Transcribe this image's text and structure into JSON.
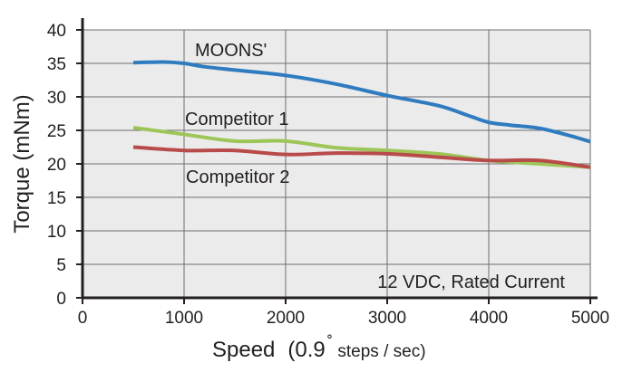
{
  "chart_data": {
    "type": "line",
    "xlabel": "Speed",
    "xlabel_paren_open": "(0.9",
    "xlabel_degree": "˚",
    "xlabel_unit": " steps / sec)",
    "ylabel": "Torque  (mNm)",
    "xlim": [
      0,
      5000
    ],
    "ylim": [
      0,
      40
    ],
    "xticks": [
      0,
      1000,
      2000,
      3000,
      4000,
      5000
    ],
    "yticks": [
      0,
      5,
      10,
      15,
      20,
      25,
      30,
      35,
      40
    ],
    "grid": true,
    "background": "#ebebeb",
    "annotation": "12 VDC, Rated Current",
    "series": [
      {
        "name": "MOONS'",
        "color": "#2f7bbf",
        "x": [
          500,
          800,
          1000,
          1200,
          1500,
          2000,
          2500,
          3000,
          3500,
          3800,
          4000,
          4200,
          4500,
          4800,
          5000
        ],
        "y": [
          35.1,
          35.2,
          35.0,
          34.5,
          34.0,
          33.2,
          31.9,
          30.2,
          28.7,
          27.2,
          26.2,
          25.8,
          25.3,
          24.2,
          23.3
        ]
      },
      {
        "name": "Competitor 1",
        "color": "#9dc557",
        "x": [
          500,
          1000,
          1500,
          2000,
          2500,
          3000,
          3500,
          4000,
          4500,
          5000
        ],
        "y": [
          25.4,
          24.4,
          23.4,
          23.4,
          22.4,
          22.0,
          21.5,
          20.5,
          20.0,
          19.5
        ]
      },
      {
        "name": "Competitor 2",
        "color": "#b94a4a",
        "x": [
          500,
          1000,
          1500,
          2000,
          2500,
          3000,
          3500,
          4000,
          4500,
          5000
        ],
        "y": [
          22.5,
          22.0,
          22.0,
          21.4,
          21.6,
          21.5,
          21.0,
          20.5,
          20.5,
          19.5
        ]
      }
    ]
  }
}
